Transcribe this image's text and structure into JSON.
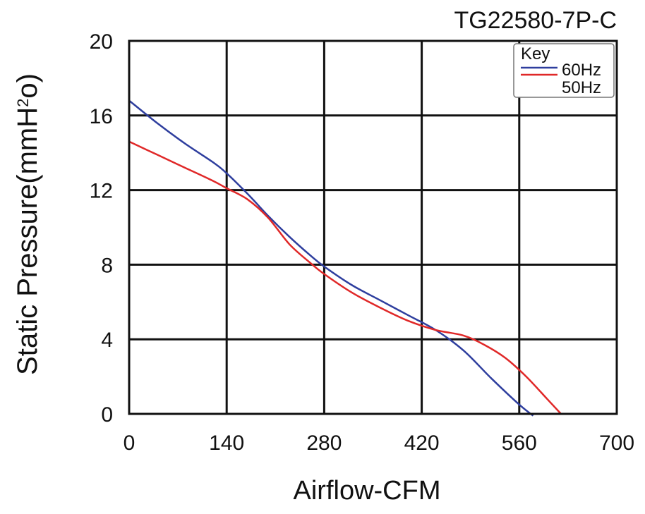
{
  "chart_data": {
    "type": "line",
    "title": "TG22580-7P-C",
    "xlabel": "Airflow-CFM",
    "ylabel_main": "Static Pressure(mmH",
    "ylabel_sup": "2",
    "ylabel_end": "o)",
    "xlim": [
      0,
      700
    ],
    "ylim": [
      0,
      20
    ],
    "x_ticks": [
      0,
      140,
      280,
      420,
      560,
      700
    ],
    "y_ticks": [
      0,
      4,
      8,
      12,
      16,
      20
    ],
    "grid": true,
    "legend": {
      "title": "Key",
      "placement": "top-right"
    },
    "series": [
      {
        "name": "60Hz",
        "color": "#2e3e9e",
        "x": [
          0,
          40,
          80,
          120,
          140,
          170,
          200,
          230,
          260,
          280,
          320,
          360,
          400,
          440,
          480,
          520,
          560,
          580
        ],
        "y": [
          16.8,
          15.6,
          14.5,
          13.5,
          12.9,
          11.8,
          10.6,
          9.5,
          8.5,
          7.9,
          6.9,
          6.1,
          5.3,
          4.5,
          3.4,
          1.9,
          0.5,
          -0.1
        ]
      },
      {
        "name": "50Hz",
        "color": "#e02828",
        "x": [
          0,
          40,
          80,
          120,
          140,
          170,
          200,
          230,
          260,
          280,
          320,
          360,
          400,
          440,
          480,
          510,
          540,
          570,
          600,
          620
        ],
        "y": [
          14.6,
          13.9,
          13.2,
          12.5,
          12.1,
          11.5,
          10.5,
          9.1,
          8.1,
          7.5,
          6.5,
          5.7,
          5.0,
          4.5,
          4.2,
          3.7,
          3.0,
          2.0,
          0.8,
          0.0
        ]
      }
    ]
  }
}
